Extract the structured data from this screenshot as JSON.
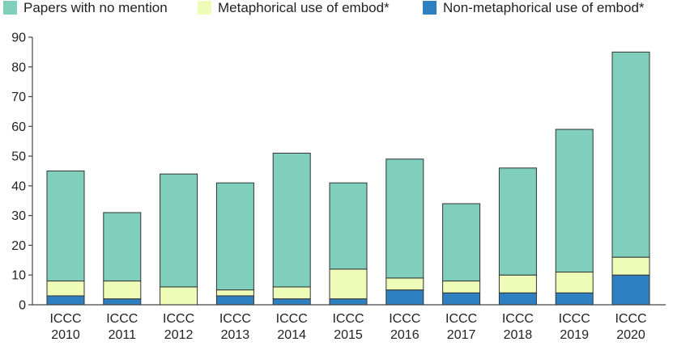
{
  "chart_data": {
    "type": "bar",
    "stacked": true,
    "title": "",
    "xlabel": "",
    "ylabel": "",
    "ylim": [
      0,
      90
    ],
    "yticks": [
      0,
      10,
      20,
      30,
      40,
      50,
      60,
      70,
      80,
      90
    ],
    "grid": false,
    "legend_position": "top",
    "categories": [
      [
        "ICCC",
        "2010"
      ],
      [
        "ICCC",
        "2011"
      ],
      [
        "ICCC",
        "2012"
      ],
      [
        "ICCC",
        "2013"
      ],
      [
        "ICCC",
        "2014"
      ],
      [
        "ICCC",
        "2015"
      ],
      [
        "ICCC",
        "2016"
      ],
      [
        "ICCC",
        "2017"
      ],
      [
        "ICCC",
        "2018"
      ],
      [
        "ICCC",
        "2019"
      ],
      [
        "ICCC",
        "2020"
      ]
    ],
    "series": [
      {
        "name": "Non-metaphorical use of embod*",
        "color": "#2f80c0",
        "values": [
          3,
          2,
          0,
          3,
          2,
          2,
          5,
          4,
          4,
          4,
          10
        ]
      },
      {
        "name": "Metaphorical use of embod*",
        "color": "#eefcb8",
        "values": [
          5,
          6,
          6,
          2,
          4,
          10,
          4,
          4,
          6,
          7,
          6
        ]
      },
      {
        "name": "Papers with no mention",
        "color": "#7fcfbc",
        "values": [
          37,
          23,
          38,
          36,
          45,
          29,
          40,
          26,
          36,
          48,
          69
        ]
      }
    ],
    "legend_order": [
      2,
      1,
      0
    ]
  }
}
